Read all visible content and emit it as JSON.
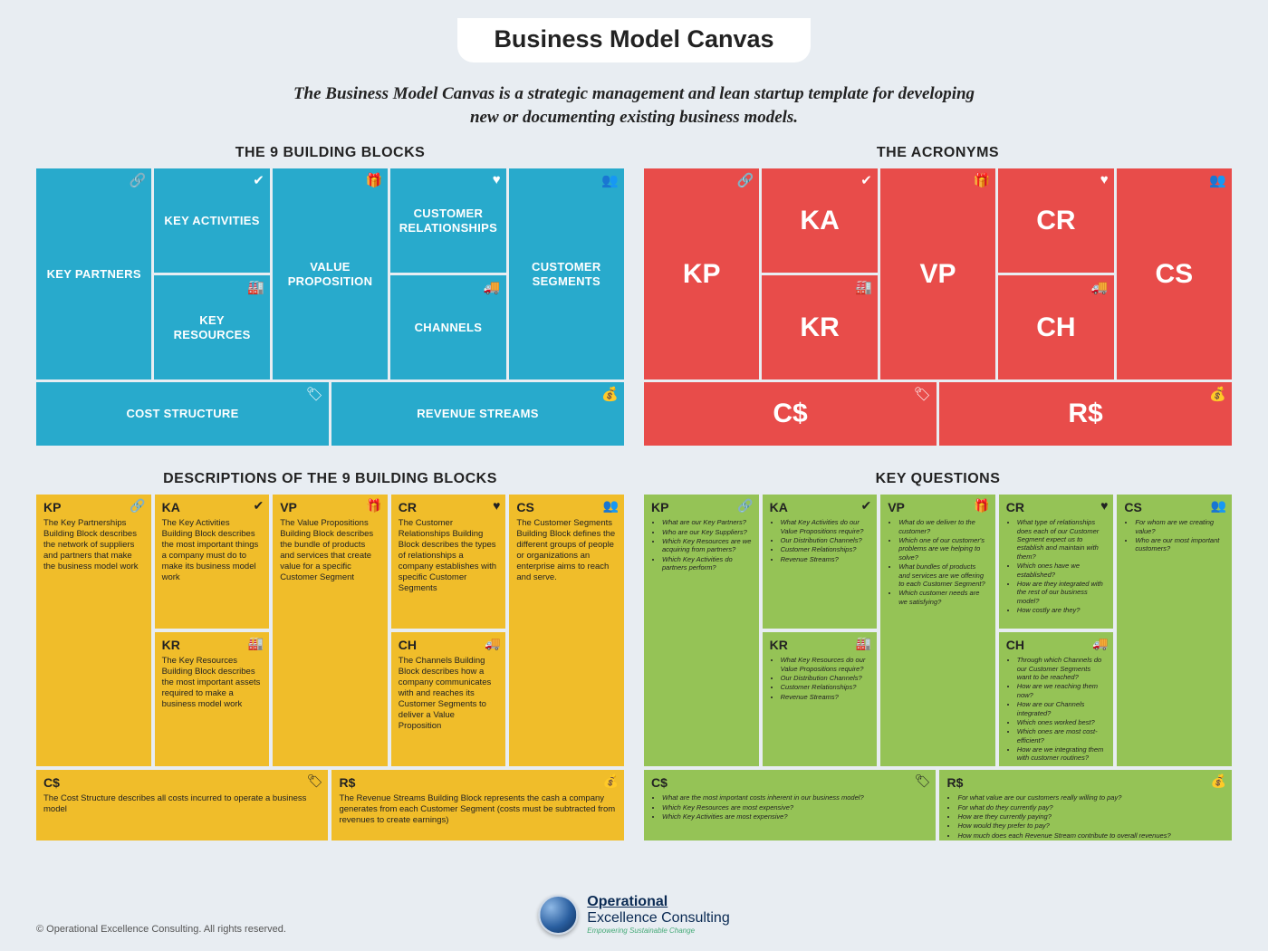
{
  "title": "Business Model Canvas",
  "subtitle": "The Business Model Canvas is a strategic management and lean startup template for developing new or documenting existing business models.",
  "sections": {
    "blocks": "THE 9 BUILDING BLOCKS",
    "acronyms": "THE ACRONYMS",
    "descriptions": "DESCRIPTIONS OF THE 9 BUILDING BLOCKS",
    "questions": "KEY QUESTIONS"
  },
  "colors": {
    "page_bg": "#e8edf2",
    "blue": "#28aacc",
    "red": "#e84c4a",
    "yellow": "#f0bd2a",
    "green": "#95c356",
    "text_dark": "#222222",
    "white": "#ffffff"
  },
  "icons": {
    "kp": "🔗",
    "ka": "✔",
    "kr": "🏭",
    "vp": "🎁",
    "cr": "♥",
    "ch": "🚚",
    "cs": "👥",
    "cost": "🏷",
    "rev": "💰"
  },
  "blocks": {
    "kp": {
      "acr": "KP",
      "label": "KEY PARTNERS"
    },
    "ka": {
      "acr": "KA",
      "label": "KEY ACTIVITIES"
    },
    "kr": {
      "acr": "KR",
      "label": "KEY RESOURCES"
    },
    "vp": {
      "acr": "VP",
      "label": "VALUE PROPOSITION"
    },
    "cr": {
      "acr": "CR",
      "label": "CUSTOMER RELATIONSHIPS"
    },
    "ch": {
      "acr": "CH",
      "label": "CHANNELS"
    },
    "cs": {
      "acr": "CS",
      "label": "CUSTOMER SEGMENTS"
    },
    "cost": {
      "acr": "C$",
      "label": "COST STRUCTURE"
    },
    "rev": {
      "acr": "R$",
      "label": "REVENUE STREAMS"
    }
  },
  "descriptions": {
    "kp": "The Key Partnerships Building Block describes the network of suppliers and partners that make the business model work",
    "ka": "The Key Activities Building Block describes the most important things a company must do to make its business model work",
    "kr": "The Key Resources Building Block describes the most important assets required to make a business model work",
    "vp": "The Value Propositions Building Block describes the bundle of products and services that create value for a specific Customer Segment",
    "cr": "The Customer Relationships Building Block describes the types of relationships a company establishes with specific Customer Segments",
    "ch": "The Channels Building Block describes how a company communicates with and reaches its Customer Segments to deliver a Value Proposition",
    "cs": "The Customer Segments Building Block defines the different groups of people or organizations an enterprise aims to reach and serve.",
    "cost": "The Cost Structure describes all costs incurred to operate a business model",
    "rev": "The Revenue Streams Building Block represents the cash a company generates from each Customer Segment (costs must be subtracted from revenues to create earnings)"
  },
  "questions": {
    "kp": [
      "What are our Key Partners?",
      "Who are our Key Suppliers?",
      "Which Key Resources are we acquiring from partners?",
      "Which Key Activities do partners perform?"
    ],
    "ka": [
      "What Key Activities do our Value Propositions require?",
      "Our Distribution Channels?",
      "Customer Relationships?",
      "Revenue Streams?"
    ],
    "kr": [
      "What Key Resources do our Value Propositions require?",
      "Our Distribution Channels?",
      "Customer Relationships?",
      "Revenue Streams?"
    ],
    "vp": [
      "What do we deliver to the customer?",
      "Which one of our customer's problems are we helping to solve?",
      "What bundles of products and services are we offering to each Customer Segment?",
      "Which customer needs are we satisfying?"
    ],
    "cr": [
      "What type of relationships does each of our Customer Segment expect us to establish and maintain with them?",
      "Which ones have we established?",
      "How are they integrated with the rest of our business model?",
      "How costly are they?"
    ],
    "ch": [
      "Through which Channels do our Customer Segments want to be reached?",
      "How are we reaching them now?",
      "How are our Channels integrated?",
      "Which ones worked best?",
      "Which ones are most cost-efficient?",
      "How are we integrating them with customer routines?"
    ],
    "cs": [
      "For whom are we creating value?",
      "Who are our most important customers?"
    ],
    "cost": [
      "What are the most important costs inherent in our business model?",
      "Which Key Resources are most expensive?",
      "Which Key Activities are most expensive?"
    ],
    "rev": [
      "For what value are our customers really willing to pay?",
      "For what do they currently pay?",
      "How are they currently paying?",
      "How would they prefer to pay?",
      "How much does each Revenue Stream contribute to overall revenues?"
    ]
  },
  "footer": {
    "copyright": "© Operational Excellence Consulting. All rights reserved.",
    "brand_line1a": "Operational",
    "brand_line1b": "Excellence Consulting",
    "brand_tagline": "Empowering Sustainable Change"
  }
}
